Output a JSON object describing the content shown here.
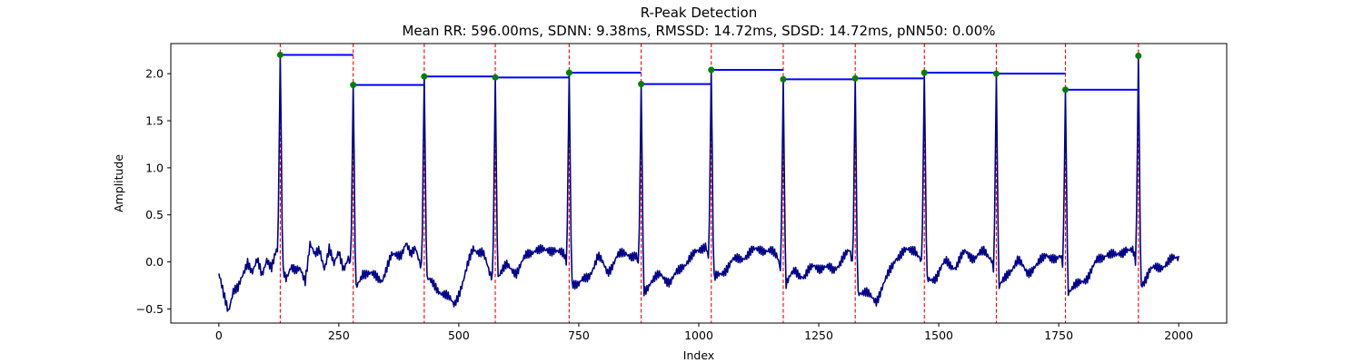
{
  "chart_data": {
    "type": "line",
    "title": "R-Peak Detection",
    "subtitle": "Mean RR: 596.00ms, SDNN: 9.38ms, RMSSD: 14.72ms, SDSD: 14.72ms, pNN50: 0.00%",
    "xlabel": "Index",
    "ylabel": "Amplitude",
    "xlim": [
      -100,
      2100
    ],
    "ylim": [
      -0.65,
      2.32
    ],
    "xticks": [
      0,
      250,
      500,
      750,
      1000,
      1250,
      1500,
      1750,
      2000
    ],
    "yticks": [
      -0.5,
      0.0,
      0.5,
      1.0,
      1.5,
      2.0
    ],
    "ytick_labels": [
      "−0.5",
      "0.0",
      "0.5",
      "1.0",
      "1.5",
      "2.0"
    ],
    "grid": false,
    "legend": "none",
    "colors": {
      "signal": "#00008b",
      "peak_line": "#ff0000",
      "peak_marker": "#008000",
      "rr_segment": "#0000ff"
    },
    "peaks": [
      {
        "x": 128,
        "y": 2.2
      },
      {
        "x": 280,
        "y": 1.88
      },
      {
        "x": 428,
        "y": 1.97
      },
      {
        "x": 576,
        "y": 1.96
      },
      {
        "x": 730,
        "y": 2.01
      },
      {
        "x": 880,
        "y": 1.89
      },
      {
        "x": 1026,
        "y": 2.04
      },
      {
        "x": 1176,
        "y": 1.94
      },
      {
        "x": 1326,
        "y": 1.95
      },
      {
        "x": 1470,
        "y": 2.01
      },
      {
        "x": 1620,
        "y": 2.0
      },
      {
        "x": 1764,
        "y": 1.83
      },
      {
        "x": 1916,
        "y": 2.19
      }
    ],
    "signal": {
      "x_start": 0,
      "x_end": 2000,
      "baseline": [
        [
          0,
          -0.15
        ],
        [
          10,
          -0.35
        ],
        [
          20,
          -0.5
        ],
        [
          30,
          -0.3
        ],
        [
          40,
          -0.3
        ],
        [
          50,
          -0.15
        ],
        [
          60,
          0.02
        ],
        [
          70,
          -0.1
        ],
        [
          80,
          0.0
        ],
        [
          90,
          -0.15
        ],
        [
          100,
          0.05
        ],
        [
          110,
          -0.05
        ],
        [
          120,
          0.1
        ],
        [
          140,
          -0.15
        ],
        [
          150,
          -0.05
        ],
        [
          160,
          -0.12
        ],
        [
          170,
          -0.08
        ],
        [
          180,
          -0.18
        ],
        [
          190,
          0.2
        ],
        [
          200,
          0.05
        ],
        [
          210,
          0.12
        ],
        [
          220,
          -0.05
        ],
        [
          230,
          0.15
        ],
        [
          240,
          -0.05
        ],
        [
          250,
          0.1
        ],
        [
          260,
          -0.05
        ],
        [
          270,
          0.05
        ],
        [
          285,
          -0.3
        ],
        [
          300,
          -0.1
        ],
        [
          320,
          -0.15
        ],
        [
          340,
          -0.18
        ],
        [
          360,
          0.05
        ],
        [
          380,
          0.1
        ],
        [
          390,
          0.2
        ],
        [
          400,
          0.05
        ],
        [
          410,
          0.15
        ],
        [
          420,
          0.0
        ],
        [
          435,
          -0.2
        ],
        [
          450,
          -0.25
        ],
        [
          470,
          -0.35
        ],
        [
          490,
          -0.45
        ],
        [
          510,
          -0.2
        ],
        [
          530,
          0.15
        ],
        [
          550,
          0.1
        ],
        [
          565,
          -0.15
        ],
        [
          580,
          -0.15
        ],
        [
          600,
          -0.05
        ],
        [
          620,
          -0.1
        ],
        [
          640,
          0.05
        ],
        [
          660,
          0.15
        ],
        [
          680,
          0.1
        ],
        [
          700,
          0.15
        ],
        [
          720,
          0.05
        ],
        [
          735,
          -0.2
        ],
        [
          750,
          -0.25
        ],
        [
          770,
          -0.15
        ],
        [
          790,
          0.05
        ],
        [
          810,
          -0.1
        ],
        [
          830,
          0.05
        ],
        [
          850,
          0.1
        ],
        [
          870,
          0.05
        ],
        [
          885,
          -0.32
        ],
        [
          900,
          -0.2
        ],
        [
          920,
          -0.15
        ],
        [
          940,
          -0.2
        ],
        [
          960,
          -0.1
        ],
        [
          980,
          0.05
        ],
        [
          1000,
          0.1
        ],
        [
          1015,
          0.2
        ],
        [
          1030,
          -0.2
        ],
        [
          1050,
          -0.1
        ],
        [
          1070,
          0.0
        ],
        [
          1090,
          0.05
        ],
        [
          1110,
          0.1
        ],
        [
          1130,
          0.15
        ],
        [
          1150,
          0.1
        ],
        [
          1165,
          0.05
        ],
        [
          1180,
          -0.25
        ],
        [
          1200,
          -0.1
        ],
        [
          1220,
          -0.15
        ],
        [
          1240,
          -0.05
        ],
        [
          1260,
          -0.05
        ],
        [
          1280,
          -0.1
        ],
        [
          1300,
          0.05
        ],
        [
          1315,
          0.1
        ],
        [
          1330,
          -0.3
        ],
        [
          1350,
          -0.35
        ],
        [
          1370,
          -0.4
        ],
        [
          1390,
          -0.2
        ],
        [
          1410,
          0.05
        ],
        [
          1430,
          0.1
        ],
        [
          1450,
          0.15
        ],
        [
          1460,
          0.05
        ],
        [
          1475,
          -0.2
        ],
        [
          1495,
          -0.15
        ],
        [
          1515,
          0.0
        ],
        [
          1535,
          -0.05
        ],
        [
          1555,
          0.1
        ],
        [
          1575,
          0.05
        ],
        [
          1595,
          0.1
        ],
        [
          1610,
          0.05
        ],
        [
          1625,
          -0.3
        ],
        [
          1645,
          -0.1
        ],
        [
          1665,
          0.0
        ],
        [
          1685,
          -0.1
        ],
        [
          1705,
          -0.05
        ],
        [
          1725,
          0.1
        ],
        [
          1745,
          0.0
        ],
        [
          1755,
          0.05
        ],
        [
          1770,
          -0.3
        ],
        [
          1790,
          -0.25
        ],
        [
          1810,
          -0.15
        ],
        [
          1830,
          0.0
        ],
        [
          1850,
          0.1
        ],
        [
          1870,
          0.05
        ],
        [
          1890,
          0.15
        ],
        [
          1905,
          0.1
        ],
        [
          1920,
          -0.25
        ],
        [
          1940,
          -0.1
        ],
        [
          1960,
          -0.05
        ],
        [
          1980,
          0.0
        ],
        [
          2000,
          0.05
        ]
      ]
    }
  }
}
